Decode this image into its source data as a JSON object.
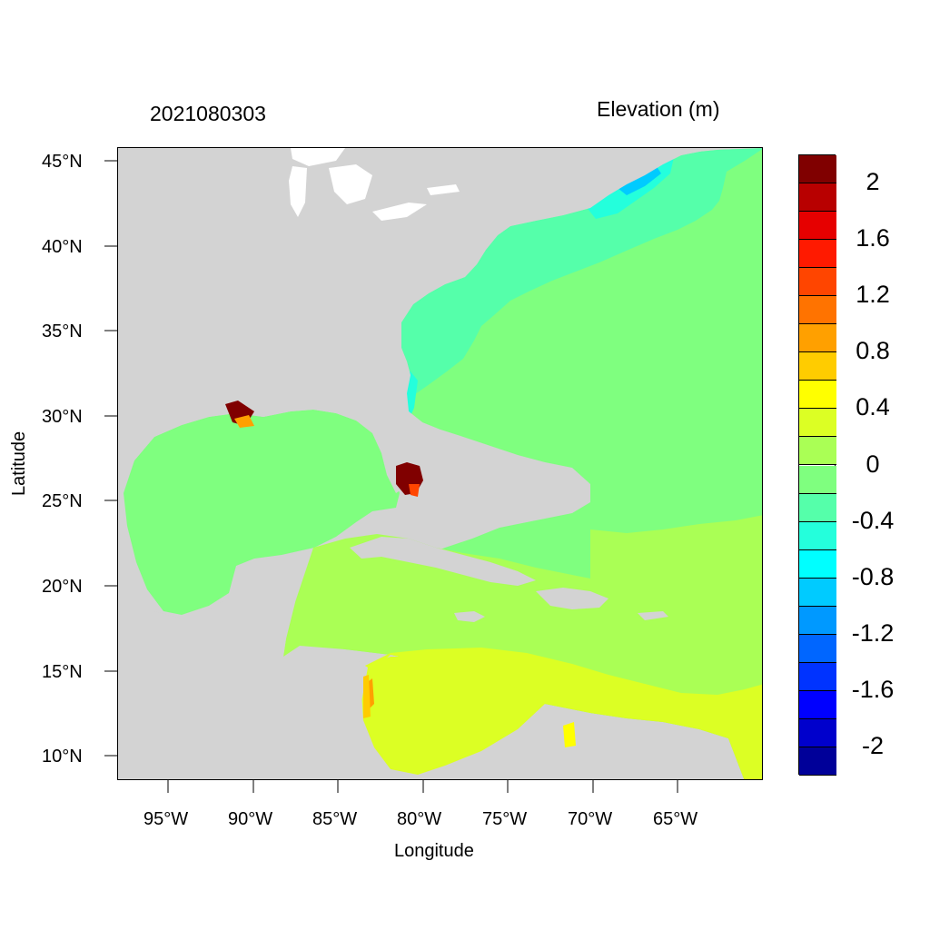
{
  "title_left": "2021080303",
  "title_right": "Elevation (m)",
  "x_axis_label": "Longitude",
  "y_axis_label": "Latitude",
  "x_ticks": [
    "95°W",
    "90°W",
    "85°W",
    "80°W",
    "75°W",
    "70°W",
    "65°W"
  ],
  "y_ticks": [
    "45°N",
    "40°N",
    "35°N",
    "30°N",
    "25°N",
    "20°N",
    "15°N",
    "10°N"
  ],
  "colorbar": {
    "labels": [
      "2",
      "1.6",
      "1.2",
      "0.8",
      "0.4",
      "0",
      "-0.4",
      "-0.8",
      "-1.2",
      "-1.6",
      "-2"
    ],
    "colors": [
      "#800000",
      "#b80000",
      "#e60000",
      "#ff1a00",
      "#ff4500",
      "#ff7300",
      "#ffa000",
      "#ffcc00",
      "#ffff00",
      "#dcff24",
      "#aaff55",
      "#7fff7f",
      "#55ffaa",
      "#24ffdc",
      "#00ffff",
      "#00cbff",
      "#0099ff",
      "#0066ff",
      "#0033ff",
      "#0000ff",
      "#0000cc",
      "#000099"
    ]
  },
  "colors": {
    "land": "#d3d3d3",
    "lakes": "#ffffff"
  }
}
